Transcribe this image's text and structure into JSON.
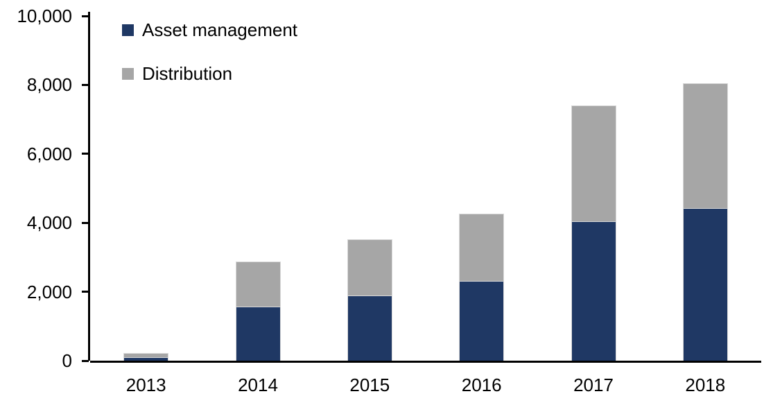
{
  "chart_data": {
    "type": "bar",
    "stacked": true,
    "title": "",
    "xlabel": "",
    "ylabel": "",
    "categories": [
      "2013",
      "2014",
      "2015",
      "2016",
      "2017",
      "2018"
    ],
    "series": [
      {
        "name": "Asset management",
        "color": "#1f3864",
        "values": [
          100,
          1570,
          1890,
          2310,
          4040,
          4430
        ]
      },
      {
        "name": "Distribution",
        "color": "#a6a6a6",
        "values": [
          120,
          1310,
          1630,
          1950,
          3360,
          3620
        ]
      }
    ],
    "ylim": [
      0,
      10000
    ],
    "yticks": [
      {
        "value": 0,
        "label": "0"
      },
      {
        "value": 2000,
        "label": "2,000"
      },
      {
        "value": 4000,
        "label": "4,000"
      },
      {
        "value": 6000,
        "label": "6,000"
      },
      {
        "value": 8000,
        "label": "8,000"
      },
      {
        "value": 10000,
        "label": "10,000"
      }
    ],
    "legend_position": "top-left",
    "grid": false,
    "axis_color": "#000000",
    "background_color": "#ffffff",
    "bar_border_color": "#d9d9d9"
  }
}
